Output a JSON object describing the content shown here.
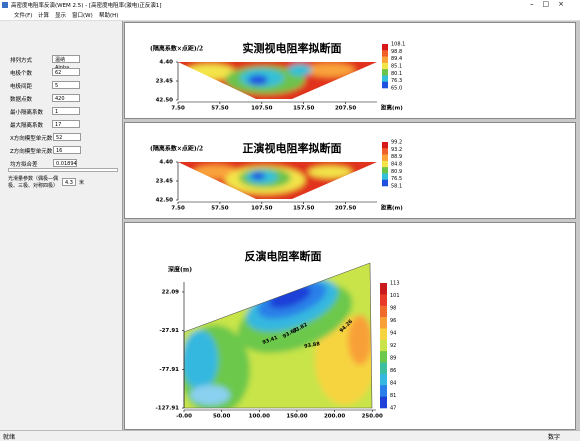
{
  "window": {
    "title": "高密度电阻率反演(WEM 2.5) - [高密度电阻率(激电)正反演1]",
    "menu": [
      "文件(F)",
      "计算",
      "显示",
      "窗口(W)",
      "帮助(H)"
    ]
  },
  "params": {
    "rows": [
      {
        "label": "排列方式",
        "value": "温纳Alpha"
      },
      {
        "label": "电极个数",
        "value": "62"
      },
      {
        "label": "电极间距",
        "value": "5"
      },
      {
        "label": "数据点数",
        "value": "420"
      },
      {
        "label": "最小隔离系数",
        "value": "1"
      },
      {
        "label": "最大隔离系数",
        "value": "17"
      },
      {
        "label": "X方向模型单元数",
        "value": "52"
      },
      {
        "label": "Z方向模型单元数",
        "value": "16"
      },
      {
        "label": "均方拟合差",
        "value": "0.01894"
      }
    ],
    "smooth": {
      "label": "光滑量参数（偶极—偶极、三极、对称四极）",
      "value": "4.3",
      "unit": "米"
    }
  },
  "charts": [
    {
      "title": "实测视电阻率拟断面",
      "ylabel": "(隔离系数×点距)/2",
      "xlabel": "距离(m)",
      "xlim": [
        7.5,
        245
      ],
      "ylim": [
        4.4,
        42.5
      ],
      "xticks": [
        {
          "value": 7.5,
          "label": "7.50"
        },
        {
          "value": 57.5,
          "label": "57.50"
        },
        {
          "value": 107.5,
          "label": "107.50"
        },
        {
          "value": 157.5,
          "label": "157.50"
        },
        {
          "value": 207.5,
          "label": "207.50"
        }
      ],
      "yticks": [
        {
          "value": 4.4,
          "label": "4.40"
        },
        {
          "value": 23.45,
          "label": "23.45"
        },
        {
          "value": 42.5,
          "label": "42.50"
        }
      ],
      "colorbar": {
        "labels": [
          "108.1",
          "98.8",
          "89.4",
          "85.1",
          "80.1",
          "76.3",
          "65.0"
        ],
        "colors": [
          "#d7191c",
          "#f0602a",
          "#f9a33a",
          "#f3e44a",
          "#6cc34c",
          "#34c0d8",
          "#2050e0"
        ]
      }
    },
    {
      "title": "正演视电阻率拟断面",
      "ylabel": "(隔离系数×点距)/2",
      "xlabel": "距离(m)",
      "xlim": [
        7.5,
        245
      ],
      "ylim": [
        4.4,
        42.5
      ],
      "xticks": [
        {
          "value": 7.5,
          "label": "7.50"
        },
        {
          "value": 57.5,
          "label": "57.50"
        },
        {
          "value": 107.5,
          "label": "107.50"
        },
        {
          "value": 157.5,
          "label": "157.50"
        },
        {
          "value": 207.5,
          "label": "207.50"
        }
      ],
      "yticks": [
        {
          "value": 4.4,
          "label": "4.40"
        },
        {
          "value": 23.45,
          "label": "23.45"
        },
        {
          "value": 42.5,
          "label": "42.50"
        }
      ],
      "colorbar": {
        "labels": [
          "99.2",
          "93.2",
          "88.9",
          "84.8",
          "80.9",
          "76.5",
          "58.1"
        ],
        "colors": [
          "#d7191c",
          "#f0602a",
          "#f9a33a",
          "#f3e44a",
          "#6cc34c",
          "#34c0d8",
          "#2050e0"
        ]
      }
    },
    {
      "title": "反演电阻率断面",
      "ylabel": "深度(m)",
      "xlim": [
        0,
        255
      ],
      "ylim": [
        35,
        -127.91
      ],
      "xticks": [
        {
          "value": 0,
          "label": "-0.00"
        },
        {
          "value": 50,
          "label": "50.00"
        },
        {
          "value": 100,
          "label": "100.00"
        },
        {
          "value": 150,
          "label": "150.00"
        },
        {
          "value": 200,
          "label": "200.00"
        },
        {
          "value": 250,
          "label": "250.00"
        }
      ],
      "yticks": [
        {
          "value": 22.09,
          "label": "22.09"
        },
        {
          "value": -27.91,
          "label": "-27.91"
        },
        {
          "value": -77.91,
          "label": "-77.91"
        },
        {
          "value": -127.91,
          "label": "-127.91"
        }
      ],
      "annotations": [
        "93.82",
        "93.41",
        "93.62",
        "94.26",
        "93.88"
      ],
      "colorbar": {
        "labels": [
          "113",
          "101",
          "98",
          "96",
          "94",
          "92",
          "89",
          "86",
          "84",
          "81",
          "47"
        ],
        "colors": [
          "#c81a1c",
          "#e8382a",
          "#f06a2c",
          "#f8a038",
          "#f6d440",
          "#c8e44a",
          "#6cc84c",
          "#3cc0a0",
          "#34b8e0",
          "#2a80e8",
          "#1f40d8"
        ]
      }
    }
  ],
  "status": {
    "left": "就绪",
    "right": "数字"
  }
}
